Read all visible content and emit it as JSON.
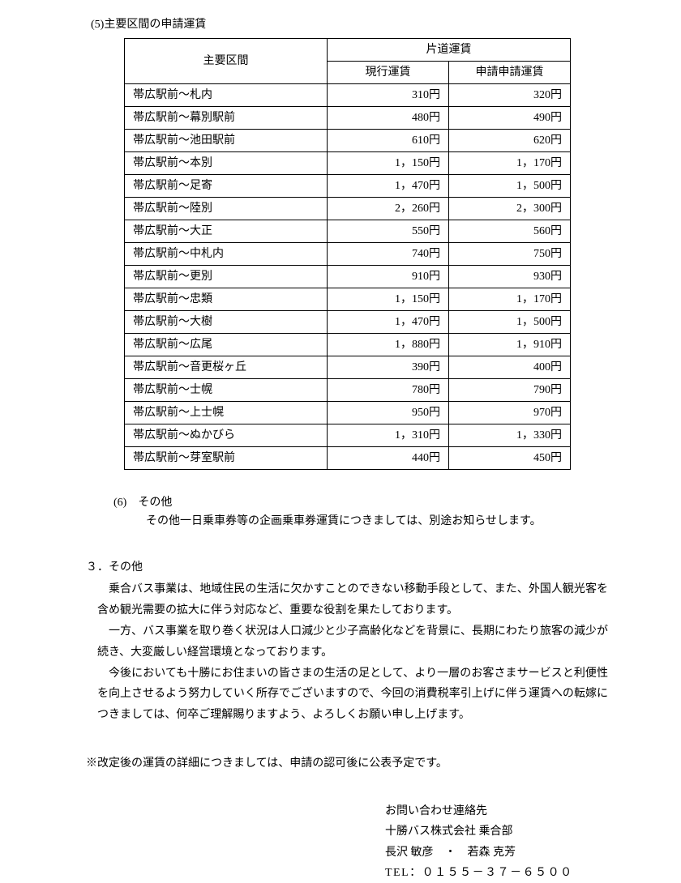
{
  "section5": {
    "heading": "(5)主要区間の申請運賃",
    "table": {
      "header_route": "主要区間",
      "header_fare_group": "片道運賃",
      "header_current": "現行運賃",
      "header_applied": "申請申請運賃",
      "rows": [
        {
          "route": "帯広駅前～札内",
          "current": "310円",
          "applied": "320円"
        },
        {
          "route": "帯広駅前～幕別駅前",
          "current": "480円",
          "applied": "490円"
        },
        {
          "route": "帯広駅前～池田駅前",
          "current": "610円",
          "applied": "620円"
        },
        {
          "route": "帯広駅前～本別",
          "current": "1，150円",
          "applied": "1，170円"
        },
        {
          "route": "帯広駅前～足寄",
          "current": "1，470円",
          "applied": "1，500円"
        },
        {
          "route": "帯広駅前～陸別",
          "current": "2，260円",
          "applied": "2，300円"
        },
        {
          "route": "帯広駅前～大正",
          "current": "550円",
          "applied": "560円"
        },
        {
          "route": "帯広駅前～中札内",
          "current": "740円",
          "applied": "750円"
        },
        {
          "route": "帯広駅前～更別",
          "current": "910円",
          "applied": "930円"
        },
        {
          "route": "帯広駅前～忠類",
          "current": "1，150円",
          "applied": "1，170円"
        },
        {
          "route": "帯広駅前～大樹",
          "current": "1，470円",
          "applied": "1，500円"
        },
        {
          "route": "帯広駅前～広尾",
          "current": "1，880円",
          "applied": "1，910円"
        },
        {
          "route": "帯広駅前～音更桜ヶ丘",
          "current": "390円",
          "applied": "400円"
        },
        {
          "route": "帯広駅前～士幌",
          "current": "780円",
          "applied": "790円"
        },
        {
          "route": "帯広駅前～上士幌",
          "current": "950円",
          "applied": "970円"
        },
        {
          "route": "帯広駅前～ぬかびら",
          "current": "1，310円",
          "applied": "1，330円"
        },
        {
          "route": "帯広駅前～芽室駅前",
          "current": "440円",
          "applied": "450円"
        }
      ]
    }
  },
  "section6": {
    "heading": "(6)　その他",
    "text": "その他一日乗車券等の企画乗車券運賃につきましては、別途お知らせします。"
  },
  "section3": {
    "heading": "３．その他",
    "paragraphs": [
      "乗合バス事業は、地域住民の生活に欠かすことのできない移動手段として、また、外国人観光客を含め観光需要の拡大に伴う対応など、重要な役割を果たしております。",
      "一方、バス事業を取り巻く状況は人口減少と少子高齢化などを背景に、長期にわたり旅客の減少が続き、大変厳しい経営環境となっております。",
      "今後においても十勝にお住まいの皆さまの生活の足として、より一層のお客さまサービスと利便性を向上させるよう努力していく所存でございますので、今回の消費税率引上げに伴う運賃への転嫁につきましては、何卒ご理解賜りますよう、よろしくお願い申し上げます。"
    ]
  },
  "note": "※改定後の運賃の詳細につきましては、申請の認可後に公表予定です。",
  "contact": {
    "line1": "お問い合わせ連絡先",
    "line2": "十勝バス株式会社 乗合部",
    "line3": "長沢 敏彦　・　若森 克芳",
    "line4": "TEL：０１５５－３７－６５００"
  }
}
